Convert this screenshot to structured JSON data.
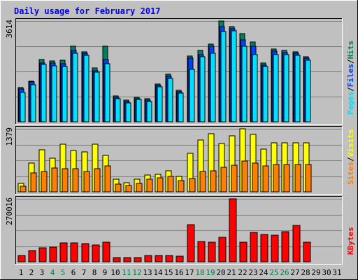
{
  "chart_data": {
    "type": "bar",
    "title": "Daily usage for February 2017",
    "colors": {
      "background": "#c0c0c0",
      "title": "#0000ff",
      "hits": "#00805c",
      "files": "#0040ff",
      "pages": "#00e0ff",
      "visits": "#ffff00",
      "sites": "#ff8000",
      "kbytes": "#ff0000",
      "weekend_label": "#008040",
      "weekday_label": "#000000",
      "grid": "#808080"
    },
    "days": [
      "1",
      "2",
      "3",
      "4",
      "5",
      "6",
      "7",
      "8",
      "9",
      "10",
      "11",
      "12",
      "13",
      "14",
      "15",
      "16",
      "17",
      "18",
      "19",
      "20",
      "21",
      "22",
      "23",
      "24",
      "25",
      "26",
      "27",
      "28",
      "29",
      "30",
      "31"
    ],
    "weekend_days": [
      4,
      5,
      11,
      12,
      18,
      19,
      25,
      26
    ],
    "panels": [
      {
        "id": "hits_files_pages",
        "max_label": "3614",
        "max": 3614,
        "legend": [
          {
            "label": "Pages",
            "color": "#00e0ff"
          },
          {
            "label": "/",
            "color": "#000000"
          },
          {
            "label": "Files",
            "color": "#0040ff"
          },
          {
            "label": "/",
            "color": "#000000"
          },
          {
            "label": "Hits",
            "color": "#00805c"
          }
        ],
        "series": [
          {
            "key": "hits",
            "values": [
              1220,
              1450,
              2240,
              2180,
              2210,
              2720,
              2520,
              1930,
              2700,
              940,
              780,
              880,
              820,
              1360,
              1700,
              1130,
              2350,
              2560,
              2790,
              3614,
              3410,
              3160,
              2860,
              2120,
              2600,
              2560,
              2520,
              2330,
              null,
              null,
              null
            ]
          },
          {
            "key": "files",
            "values": [
              1180,
              1420,
              2100,
              2120,
              2080,
              2560,
              2470,
              1840,
              2230,
              880,
              730,
              840,
              770,
              1300,
              1640,
              1090,
              2290,
              2400,
              2720,
              3410,
              3330,
              2930,
              2720,
              2030,
              2540,
              2490,
              2460,
              2280,
              null,
              null,
              null
            ]
          },
          {
            "key": "pages",
            "values": [
              1060,
              1330,
              2050,
              2000,
              1990,
              2470,
              2380,
              1780,
              2080,
              830,
              690,
              800,
              730,
              1260,
              1560,
              1040,
              1880,
              2330,
              2460,
              3240,
              3260,
              2700,
              2420,
              1980,
              2420,
              2420,
              2380,
              2210,
              null,
              null,
              null
            ]
          }
        ]
      },
      {
        "id": "visits_sites",
        "max_label": "1379",
        "max": 1379,
        "legend": [
          {
            "label": "Sites",
            "color": "#ff8000"
          },
          {
            "label": "/",
            "color": "#000000"
          },
          {
            "label": "Visits",
            "color": "#ffff00"
          }
        ],
        "series": [
          {
            "key": "visits",
            "values": [
              180,
              630,
              920,
              730,
              1040,
              900,
              870,
              1040,
              800,
              270,
              200,
              270,
              370,
              390,
              460,
              330,
              840,
              1130,
              1270,
              1050,
              1230,
              1379,
              1260,
              940,
              1080,
              1080,
              1080,
              1080,
              null,
              null,
              null
            ]
          },
          {
            "key": "sites",
            "values": [
              130,
              420,
              440,
              520,
              500,
              500,
              440,
              500,
              560,
              170,
              140,
              190,
              280,
              300,
              340,
              250,
              290,
              450,
              460,
              540,
              580,
              670,
              630,
              560,
              590,
              590,
              590,
              590,
              null,
              null,
              null
            ]
          }
        ]
      },
      {
        "id": "kbytes",
        "max_label": "270016",
        "max": 270016,
        "legend": [
          {
            "label": "KBytes",
            "color": "#ff0000"
          }
        ],
        "series": [
          {
            "key": "kbytes",
            "values": [
              28000,
              48000,
              61000,
              62000,
              82000,
              82000,
              77000,
              73000,
              83000,
              17000,
              17000,
              17000,
              27000,
              27000,
              28000,
              24000,
              160000,
              88000,
              83000,
              106000,
              270016,
              84000,
              127000,
              118000,
              115000,
              130000,
              156000,
              85000,
              null,
              null,
              null
            ]
          }
        ]
      }
    ]
  }
}
